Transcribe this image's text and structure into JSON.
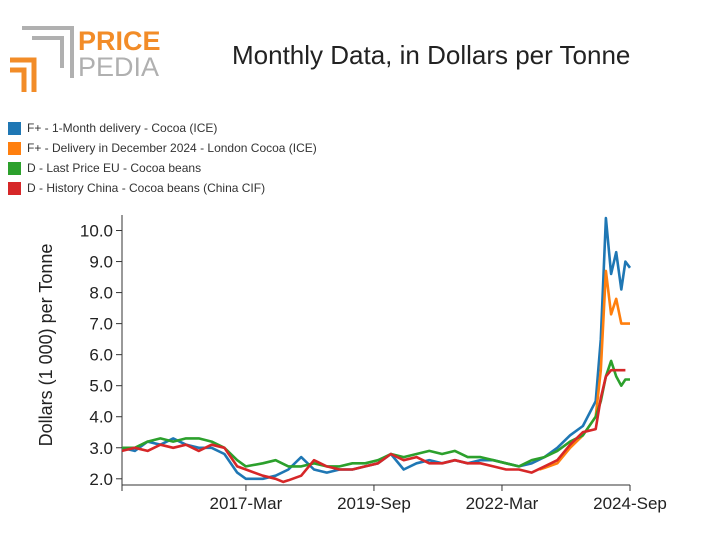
{
  "header": {
    "logo_word_top": "PRICE",
    "logo_word_bottom": "PEDIA",
    "title": "Monthly Data, in Dollars per Tonne"
  },
  "colors": {
    "accent": "#f28c28",
    "logo_gray": "#b0b0b0"
  },
  "chart_data": {
    "type": "line",
    "title": "Monthly Data, in Dollars per Tonne",
    "xlabel": "",
    "ylabel": "Dollars (1 000) per Tonne",
    "ylim": [
      1.8,
      10.5
    ],
    "y_ticks": [
      2.0,
      3.0,
      4.0,
      5.0,
      6.0,
      7.0,
      8.0,
      9.0,
      10.0
    ],
    "y_tick_labels": [
      "2.0",
      "3.0",
      "4.0",
      "5.0",
      "6.0",
      "7.0",
      "8.0",
      "9.0",
      "10.0"
    ],
    "x_range": [
      2014.75,
      2024.67
    ],
    "x_ticks": [
      2017.17,
      2019.67,
      2022.17,
      2024.67
    ],
    "x_tick_labels": [
      "2017-Mar",
      "2019-Sep",
      "2022-Mar",
      "2024-Sep"
    ],
    "series": [
      {
        "name": "F+ - 1-Month delivery - Cocoa (ICE)",
        "color": "#1f77b4",
        "points": [
          [
            2014.75,
            3.0
          ],
          [
            2015.0,
            2.9
          ],
          [
            2015.25,
            3.2
          ],
          [
            2015.5,
            3.1
          ],
          [
            2015.75,
            3.3
          ],
          [
            2016.0,
            3.1
          ],
          [
            2016.25,
            3.0
          ],
          [
            2016.5,
            3.0
          ],
          [
            2016.75,
            2.8
          ],
          [
            2017.0,
            2.2
          ],
          [
            2017.17,
            2.0
          ],
          [
            2017.5,
            2.0
          ],
          [
            2017.75,
            2.1
          ],
          [
            2018.0,
            2.3
          ],
          [
            2018.25,
            2.7
          ],
          [
            2018.5,
            2.3
          ],
          [
            2018.75,
            2.2
          ],
          [
            2019.0,
            2.3
          ],
          [
            2019.25,
            2.3
          ],
          [
            2019.5,
            2.4
          ],
          [
            2019.75,
            2.5
          ],
          [
            2020.0,
            2.8
          ],
          [
            2020.25,
            2.3
          ],
          [
            2020.5,
            2.5
          ],
          [
            2020.75,
            2.6
          ],
          [
            2021.0,
            2.5
          ],
          [
            2021.25,
            2.6
          ],
          [
            2021.5,
            2.5
          ],
          [
            2021.75,
            2.6
          ],
          [
            2022.0,
            2.6
          ],
          [
            2022.25,
            2.5
          ],
          [
            2022.5,
            2.4
          ],
          [
            2022.75,
            2.5
          ],
          [
            2023.0,
            2.7
          ],
          [
            2023.25,
            3.0
          ],
          [
            2023.5,
            3.4
          ],
          [
            2023.75,
            3.7
          ],
          [
            2024.0,
            4.5
          ],
          [
            2024.1,
            6.5
          ],
          [
            2024.2,
            10.4
          ],
          [
            2024.3,
            8.6
          ],
          [
            2024.4,
            9.3
          ],
          [
            2024.5,
            8.1
          ],
          [
            2024.58,
            9.0
          ],
          [
            2024.67,
            8.8
          ]
        ]
      },
      {
        "name": "F+ - Delivery in December 2024 - London Cocoa (ICE)",
        "color": "#ff7f0e",
        "points": [
          [
            2022.9,
            2.3
          ],
          [
            2023.0,
            2.35
          ],
          [
            2023.25,
            2.5
          ],
          [
            2023.5,
            3.0
          ],
          [
            2023.75,
            3.4
          ],
          [
            2024.0,
            4.0
          ],
          [
            2024.1,
            5.5
          ],
          [
            2024.2,
            8.7
          ],
          [
            2024.3,
            7.3
          ],
          [
            2024.4,
            7.8
          ],
          [
            2024.5,
            7.0
          ],
          [
            2024.58,
            7.0
          ],
          [
            2024.67,
            7.0
          ]
        ]
      },
      {
        "name": "D - Last Price EU - Cocoa beans",
        "color": "#2ca02c",
        "points": [
          [
            2014.75,
            3.0
          ],
          [
            2015.0,
            3.0
          ],
          [
            2015.25,
            3.2
          ],
          [
            2015.5,
            3.3
          ],
          [
            2015.75,
            3.2
          ],
          [
            2016.0,
            3.3
          ],
          [
            2016.25,
            3.3
          ],
          [
            2016.5,
            3.2
          ],
          [
            2016.75,
            3.0
          ],
          [
            2017.0,
            2.6
          ],
          [
            2017.17,
            2.4
          ],
          [
            2017.5,
            2.5
          ],
          [
            2017.75,
            2.6
          ],
          [
            2018.0,
            2.4
          ],
          [
            2018.25,
            2.4
          ],
          [
            2018.5,
            2.5
          ],
          [
            2018.75,
            2.4
          ],
          [
            2019.0,
            2.4
          ],
          [
            2019.25,
            2.5
          ],
          [
            2019.5,
            2.5
          ],
          [
            2019.75,
            2.6
          ],
          [
            2020.0,
            2.8
          ],
          [
            2020.25,
            2.7
          ],
          [
            2020.5,
            2.8
          ],
          [
            2020.75,
            2.9
          ],
          [
            2021.0,
            2.8
          ],
          [
            2021.25,
            2.9
          ],
          [
            2021.5,
            2.7
          ],
          [
            2021.75,
            2.7
          ],
          [
            2022.0,
            2.6
          ],
          [
            2022.25,
            2.5
          ],
          [
            2022.5,
            2.4
          ],
          [
            2022.75,
            2.6
          ],
          [
            2023.0,
            2.7
          ],
          [
            2023.25,
            2.9
          ],
          [
            2023.5,
            3.2
          ],
          [
            2023.75,
            3.4
          ],
          [
            2024.0,
            4.0
          ],
          [
            2024.1,
            4.5
          ],
          [
            2024.2,
            5.3
          ],
          [
            2024.3,
            5.8
          ],
          [
            2024.4,
            5.3
          ],
          [
            2024.5,
            5.0
          ],
          [
            2024.58,
            5.2
          ],
          [
            2024.67,
            5.2
          ]
        ]
      },
      {
        "name": "D - History China - Cocoa beans (China CIF)",
        "color": "#d62728",
        "points": [
          [
            2014.75,
            2.9
          ],
          [
            2015.0,
            3.0
          ],
          [
            2015.25,
            2.9
          ],
          [
            2015.5,
            3.1
          ],
          [
            2015.75,
            3.0
          ],
          [
            2016.0,
            3.1
          ],
          [
            2016.25,
            2.9
          ],
          [
            2016.5,
            3.1
          ],
          [
            2016.75,
            3.0
          ],
          [
            2017.0,
            2.4
          ],
          [
            2017.17,
            2.3
          ],
          [
            2017.5,
            2.1
          ],
          [
            2017.75,
            2.0
          ],
          [
            2017.9,
            1.9
          ],
          [
            2018.0,
            1.95
          ],
          [
            2018.25,
            2.1
          ],
          [
            2018.5,
            2.6
          ],
          [
            2018.75,
            2.4
          ],
          [
            2019.0,
            2.3
          ],
          [
            2019.25,
            2.3
          ],
          [
            2019.5,
            2.4
          ],
          [
            2019.75,
            2.5
          ],
          [
            2020.0,
            2.8
          ],
          [
            2020.25,
            2.6
          ],
          [
            2020.5,
            2.7
          ],
          [
            2020.75,
            2.5
          ],
          [
            2021.0,
            2.5
          ],
          [
            2021.25,
            2.6
          ],
          [
            2021.5,
            2.5
          ],
          [
            2021.75,
            2.5
          ],
          [
            2022.0,
            2.4
          ],
          [
            2022.25,
            2.3
          ],
          [
            2022.5,
            2.3
          ],
          [
            2022.75,
            2.2
          ],
          [
            2023.0,
            2.4
          ],
          [
            2023.25,
            2.6
          ],
          [
            2023.5,
            3.1
          ],
          [
            2023.75,
            3.5
          ],
          [
            2024.0,
            3.6
          ],
          [
            2024.1,
            4.6
          ],
          [
            2024.2,
            5.3
          ],
          [
            2024.3,
            5.5
          ],
          [
            2024.4,
            5.5
          ],
          [
            2024.5,
            5.5
          ],
          [
            2024.58,
            5.5
          ]
        ]
      }
    ]
  }
}
